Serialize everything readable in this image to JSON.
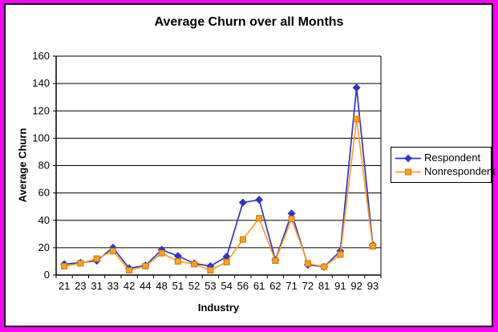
{
  "chart_data": {
    "type": "line",
    "title": "Average Churn over all Months",
    "xlabel": "Industry",
    "ylabel": "Average Churn",
    "ylim": [
      0,
      160
    ],
    "ytick_step": 20,
    "grid": true,
    "legend_position": "right",
    "frame_color": "#FF00FF",
    "categories": [
      "21",
      "23",
      "31",
      "33",
      "42",
      "44",
      "48",
      "51",
      "52",
      "53",
      "54",
      "56",
      "61",
      "62",
      "71",
      "72",
      "81",
      "91",
      "92",
      "93"
    ],
    "series": [
      {
        "name": "Respondent",
        "color": "#3333CC",
        "marker": "diamond",
        "values": [
          8,
          9,
          10.5,
          20,
          5,
          7,
          18.5,
          14,
          8.5,
          6.5,
          13.5,
          53,
          55,
          11,
          45,
          7.5,
          6,
          17.5,
          137,
          22
        ]
      },
      {
        "name": "Nonrespondent",
        "color": "#FFA020",
        "marker": "square",
        "marker_edge_color": "#C87800",
        "values": [
          6.5,
          8.5,
          12,
          17.5,
          3.5,
          6.5,
          16,
          10,
          8,
          3.5,
          9.5,
          26,
          41.5,
          10.5,
          41,
          8.5,
          6,
          15,
          114,
          21
        ]
      }
    ]
  }
}
